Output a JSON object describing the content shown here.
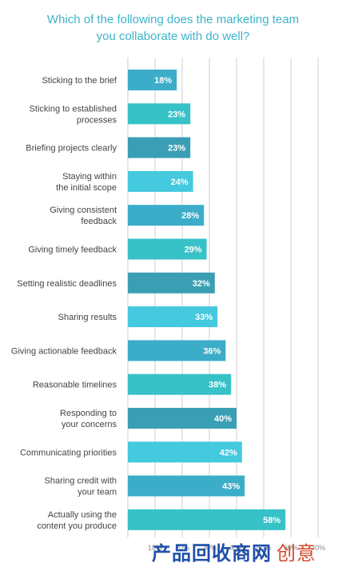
{
  "chart_data": {
    "type": "bar",
    "orientation": "horizontal",
    "title": "Which of the following does the marketing team\nyou collaborate with do well?",
    "categories": [
      "Sticking to the brief",
      "Sticking to established\nprocesses",
      "Briefing projects clearly",
      "Staying within\nthe initial scope",
      "Giving consistent\nfeedback",
      "Giving timely feedback",
      "Setting realistic deadlines",
      "Sharing results",
      "Giving actionable feedback",
      "Reasonable timelines",
      "Responding to\nyour concerns",
      "Communicating priorities",
      "Sharing credit with\nyour team",
      "Actually using the\ncontent you produce"
    ],
    "values": [
      18,
      23,
      23,
      24,
      28,
      29,
      32,
      33,
      36,
      38,
      40,
      42,
      43,
      58
    ],
    "value_labels": [
      "18%",
      "23%",
      "23%",
      "24%",
      "28%",
      "29%",
      "32%",
      "33%",
      "36%",
      "38%",
      "40%",
      "42%",
      "43%",
      "58%"
    ],
    "bar_colors": [
      "#3cadc9",
      "#36c2c7",
      "#3a9fb5",
      "#44c9de",
      "#3cadc9",
      "#36c2c7",
      "#3a9fb5",
      "#44c9de",
      "#3cadc9",
      "#36c2c7",
      "#3a9fb5",
      "#44c9de",
      "#3cadc9",
      "#36c2c7"
    ],
    "xlim": [
      0,
      70
    ],
    "ticks": [
      10,
      20,
      30,
      40,
      50,
      60,
      70
    ],
    "tick_labels": [
      "10%",
      "20%",
      "30%",
      "40%",
      "50%",
      "60%",
      "70%"
    ],
    "grid": true,
    "xlabel": "",
    "ylabel": ""
  },
  "watermark": {
    "main": "产品回收商网",
    "accent": "创意"
  }
}
